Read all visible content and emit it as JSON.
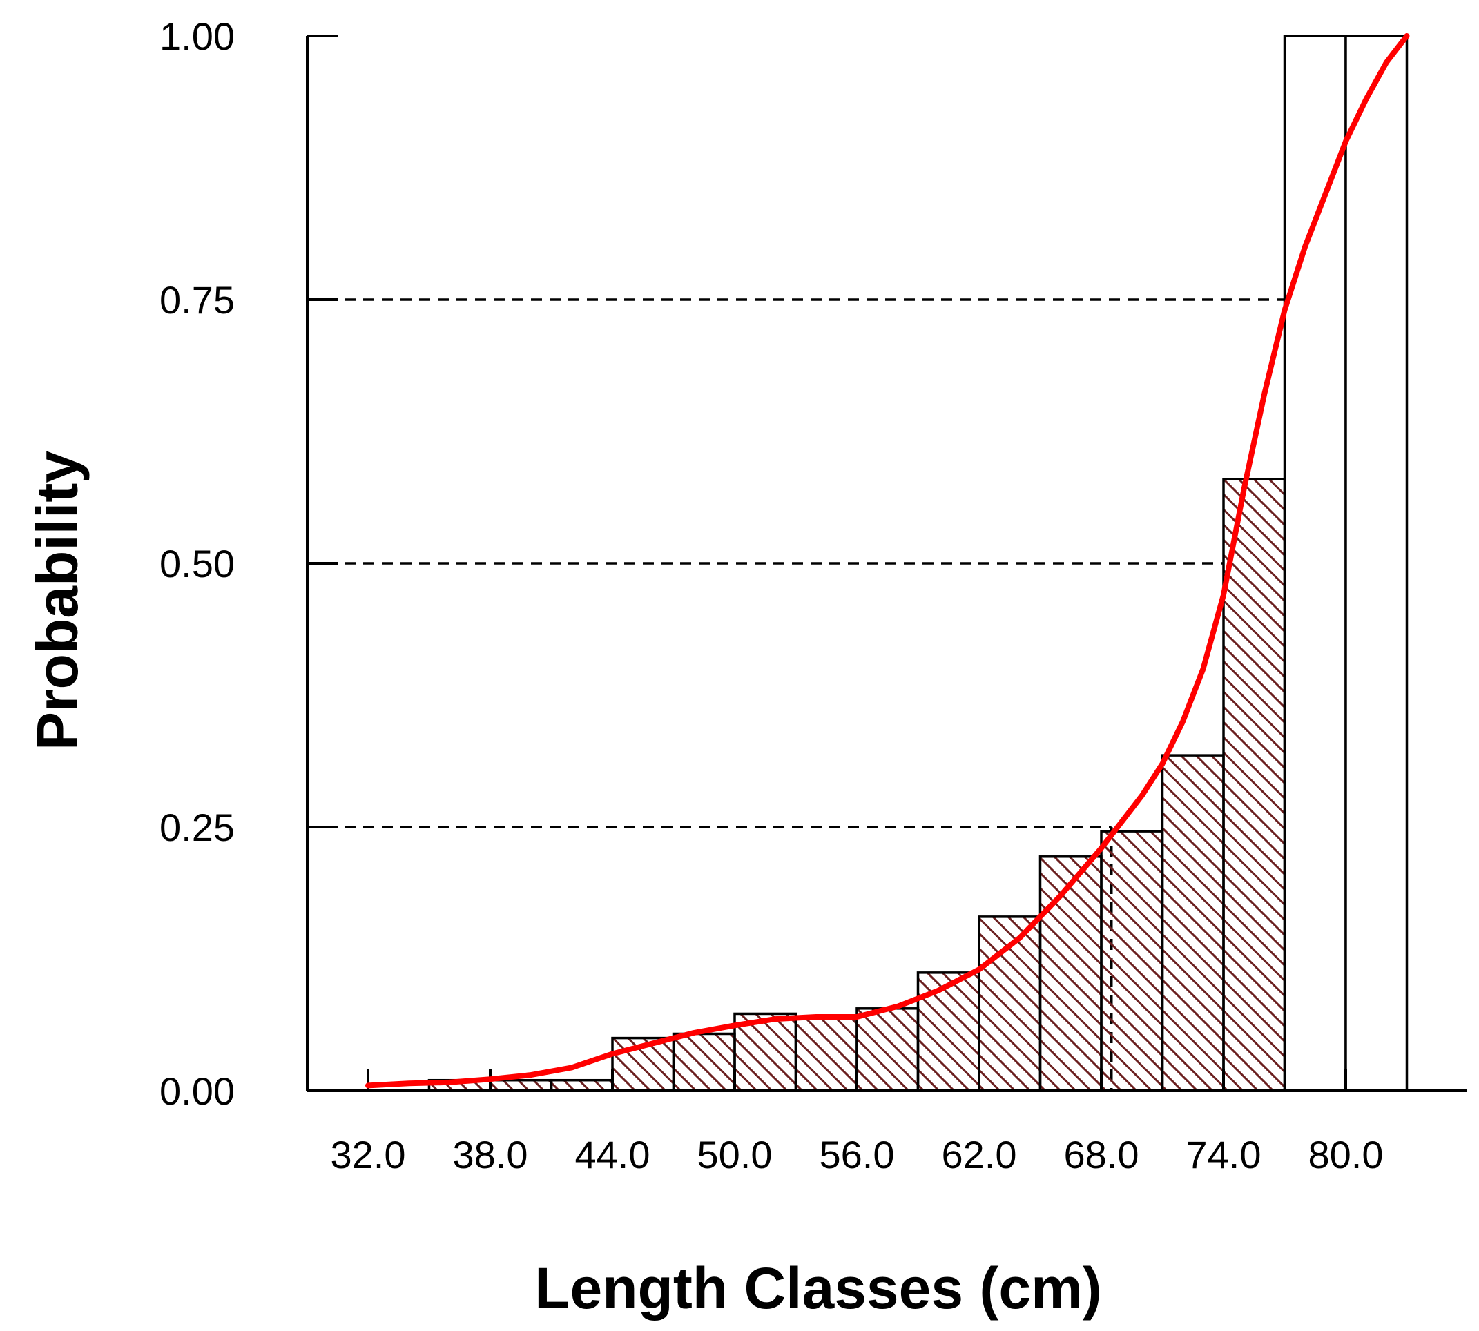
{
  "chart_data": {
    "type": "bar",
    "title": "",
    "xlabel": "Length Classes (cm)",
    "ylabel": "Probability",
    "ylim": [
      0,
      1
    ],
    "xlim": [
      29,
      86
    ],
    "y_ticks": [
      "0.00",
      "0.25",
      "0.50",
      "0.75",
      "1.00"
    ],
    "x_tick_labels": [
      "32.0",
      "38.0",
      "44.0",
      "50.0",
      "56.0",
      "62.0",
      "68.0",
      "74.0",
      "80.0"
    ],
    "x_tick_values": [
      32,
      38,
      44,
      50,
      56,
      62,
      68,
      74,
      80
    ],
    "bin_width": 3,
    "bars": [
      {
        "x0": 35,
        "value": 0.01,
        "hatched": true
      },
      {
        "x0": 38,
        "value": 0.01,
        "hatched": true
      },
      {
        "x0": 41,
        "value": 0.01,
        "hatched": true
      },
      {
        "x0": 44,
        "value": 0.05,
        "hatched": true
      },
      {
        "x0": 47,
        "value": 0.054,
        "hatched": true
      },
      {
        "x0": 50,
        "value": 0.073,
        "hatched": true
      },
      {
        "x0": 53,
        "value": 0.07,
        "hatched": true
      },
      {
        "x0": 56,
        "value": 0.078,
        "hatched": true
      },
      {
        "x0": 59,
        "value": 0.112,
        "hatched": true
      },
      {
        "x0": 62,
        "value": 0.165,
        "hatched": true
      },
      {
        "x0": 65,
        "value": 0.222,
        "hatched": true
      },
      {
        "x0": 68,
        "value": 0.246,
        "hatched": true
      },
      {
        "x0": 71,
        "value": 0.318,
        "hatched": true
      },
      {
        "x0": 74,
        "value": 0.58,
        "hatched": true
      },
      {
        "x0": 77,
        "value": 1.0,
        "hatched": false
      },
      {
        "x0": 80,
        "value": 1.0,
        "hatched": false
      }
    ],
    "reference_lines": [
      {
        "y": 0.25,
        "x_end": 68.5
      },
      {
        "y": 0.5,
        "x_end": 74
      },
      {
        "y": 0.75,
        "x_end": 77
      }
    ],
    "curve": {
      "color": "#ff0000",
      "x": [
        32,
        34,
        36,
        38,
        40,
        42,
        44,
        46,
        48,
        50,
        52,
        54,
        56,
        58,
        60,
        62,
        64,
        66,
        68,
        69,
        70,
        71,
        72,
        73,
        74,
        75,
        76,
        77,
        78,
        79,
        80,
        81,
        82,
        83
      ],
      "y": [
        0.005,
        0.007,
        0.008,
        0.011,
        0.015,
        0.022,
        0.035,
        0.045,
        0.055,
        0.062,
        0.068,
        0.07,
        0.07,
        0.08,
        0.095,
        0.115,
        0.145,
        0.185,
        0.23,
        0.255,
        0.28,
        0.31,
        0.35,
        0.4,
        0.47,
        0.57,
        0.66,
        0.74,
        0.8,
        0.85,
        0.9,
        0.94,
        0.975,
        1.0
      ]
    },
    "hatch_color": "#6b1f1f",
    "grid": false
  }
}
